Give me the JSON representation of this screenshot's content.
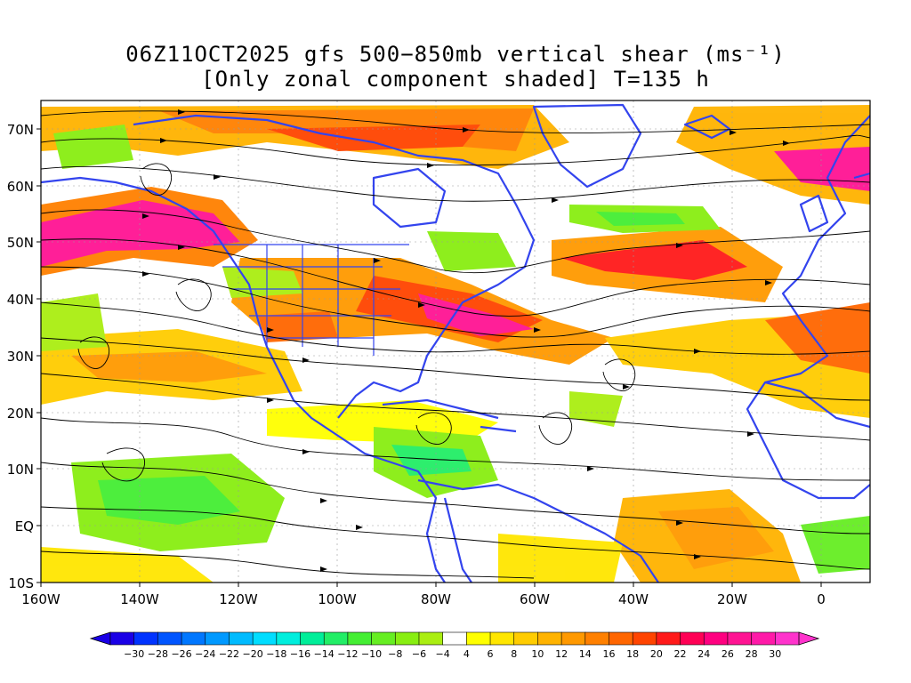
{
  "title": {
    "line1": "06Z11OCT2025 gfs 500−850mb vertical shear (ms⁻¹)",
    "line2": "[Only zonal component shaded] T=135 h"
  },
  "axes": {
    "y_ticks": [
      "70N",
      "60N",
      "50N",
      "40N",
      "30N",
      "20N",
      "10N",
      "EQ",
      "10S"
    ],
    "x_ticks": [
      "160W",
      "140W",
      "120W",
      "100W",
      "80W",
      "60W",
      "40W",
      "20W",
      "0"
    ]
  },
  "colorbar": {
    "labels": [
      "−30",
      "−28",
      "−26",
      "−24",
      "−22",
      "−20",
      "−18",
      "−16",
      "−14",
      "−12",
      "−10",
      "−8",
      "−6",
      "−4",
      "4",
      "6",
      "8",
      "10",
      "12",
      "14",
      "16",
      "18",
      "20",
      "22",
      "24",
      "26",
      "28",
      "30"
    ],
    "colors": [
      "#1a00e6",
      "#0033ff",
      "#0055ff",
      "#0077ff",
      "#0099ff",
      "#00bbff",
      "#00ddff",
      "#00eedd",
      "#00ee99",
      "#22ee66",
      "#44ee33",
      "#66ee22",
      "#88ee11",
      "#aaee11",
      "#ffffff",
      "#ffff00",
      "#ffe600",
      "#ffcc00",
      "#ffb300",
      "#ff9900",
      "#ff8000",
      "#ff6600",
      "#ff4400",
      "#ff1a1a",
      "#ff0055",
      "#ff0080",
      "#ff1493",
      "#ff1aa8",
      "#ff33cc"
    ]
  },
  "map_colors": {
    "coast": "#3344ee",
    "streamline": "#000000"
  }
}
